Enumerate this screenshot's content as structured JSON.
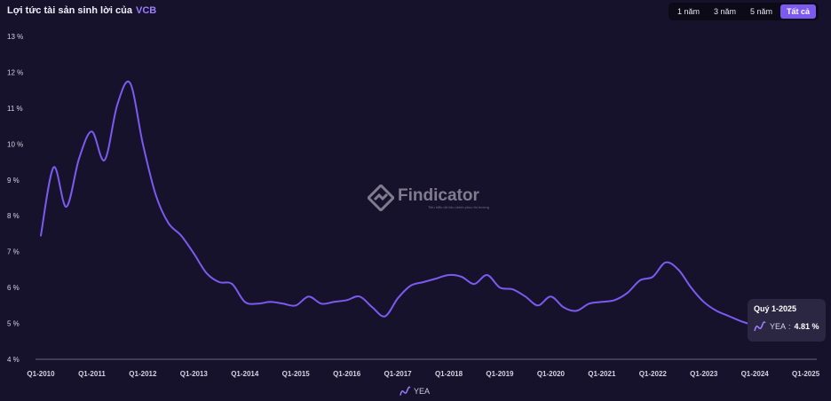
{
  "header": {
    "title": "Lợi tức tài sản sinh lời của",
    "ticker": "VCB",
    "ranges": [
      "1 năm",
      "3 năm",
      "5 năm",
      "Tất cả"
    ],
    "active_range": "Tất cả"
  },
  "watermark": {
    "brand": "Findicator",
    "tagline": "Tiêu hiểu dữ liệu chính phục thị trường"
  },
  "tooltip": {
    "title": "Quý 1-2025",
    "series_name": "YEA",
    "separator": ":",
    "value": "4.81 %"
  },
  "legend": {
    "label": "YEA"
  },
  "colors": {
    "background": "#17122b",
    "line": "#7b5af0",
    "axis_text": "#d6d2e2",
    "accent": "#9b7dff"
  },
  "chart_data": {
    "type": "line",
    "title": "Lợi tức tài sản sinh lời của VCB",
    "y_unit": "%",
    "ylim": [
      4,
      13
    ],
    "y_ticks": [
      4,
      5,
      6,
      7,
      8,
      9,
      10,
      11,
      12,
      13
    ],
    "y_tick_labels": [
      "4 %",
      "5 %",
      "6 %",
      "7 %",
      "8 %",
      "9 %",
      "10 %",
      "11 %",
      "12 %",
      "13 %"
    ],
    "x_tick_labels": [
      "Q1-2010",
      "Q1-2011",
      "Q1-2012",
      "Q1-2013",
      "Q1-2014",
      "Q1-2015",
      "Q1-2016",
      "Q1-2017",
      "Q1-2018",
      "Q1-2019",
      "Q1-2020",
      "Q1-2021",
      "Q1-2022",
      "Q1-2023",
      "Q1-2024",
      "Q1-2025"
    ],
    "x": [
      "Q1-2010",
      "Q2-2010",
      "Q3-2010",
      "Q4-2010",
      "Q1-2011",
      "Q2-2011",
      "Q3-2011",
      "Q4-2011",
      "Q1-2012",
      "Q2-2012",
      "Q3-2012",
      "Q4-2012",
      "Q1-2013",
      "Q2-2013",
      "Q3-2013",
      "Q4-2013",
      "Q1-2014",
      "Q2-2014",
      "Q3-2014",
      "Q4-2014",
      "Q1-2015",
      "Q2-2015",
      "Q3-2015",
      "Q4-2015",
      "Q1-2016",
      "Q2-2016",
      "Q3-2016",
      "Q4-2016",
      "Q1-2017",
      "Q2-2017",
      "Q3-2017",
      "Q4-2017",
      "Q1-2018",
      "Q2-2018",
      "Q3-2018",
      "Q4-2018",
      "Q1-2019",
      "Q2-2019",
      "Q3-2019",
      "Q4-2019",
      "Q1-2020",
      "Q2-2020",
      "Q3-2020",
      "Q4-2020",
      "Q1-2021",
      "Q2-2021",
      "Q3-2021",
      "Q4-2021",
      "Q1-2022",
      "Q2-2022",
      "Q3-2022",
      "Q4-2022",
      "Q1-2023",
      "Q2-2023",
      "Q3-2023",
      "Q4-2023",
      "Q1-2024",
      "Q2-2024",
      "Q3-2024",
      "Q4-2024",
      "Q1-2025"
    ],
    "series": [
      {
        "name": "YEA",
        "values": [
          7.45,
          9.35,
          8.25,
          9.6,
          10.35,
          9.55,
          11.1,
          11.7,
          10.0,
          8.6,
          7.8,
          7.45,
          6.95,
          6.4,
          6.15,
          6.1,
          5.6,
          5.55,
          5.6,
          5.55,
          5.5,
          5.75,
          5.55,
          5.6,
          5.65,
          5.75,
          5.45,
          5.2,
          5.7,
          6.05,
          6.15,
          6.25,
          6.35,
          6.3,
          6.1,
          6.35,
          6.0,
          5.95,
          5.75,
          5.5,
          5.75,
          5.45,
          5.35,
          5.55,
          5.6,
          5.65,
          5.85,
          6.2,
          6.3,
          6.7,
          6.5,
          6.0,
          5.6,
          5.35,
          5.2,
          5.05,
          4.95,
          4.9,
          4.85,
          4.82,
          4.81
        ]
      }
    ],
    "grid": false,
    "legend_position": "bottom-center"
  }
}
